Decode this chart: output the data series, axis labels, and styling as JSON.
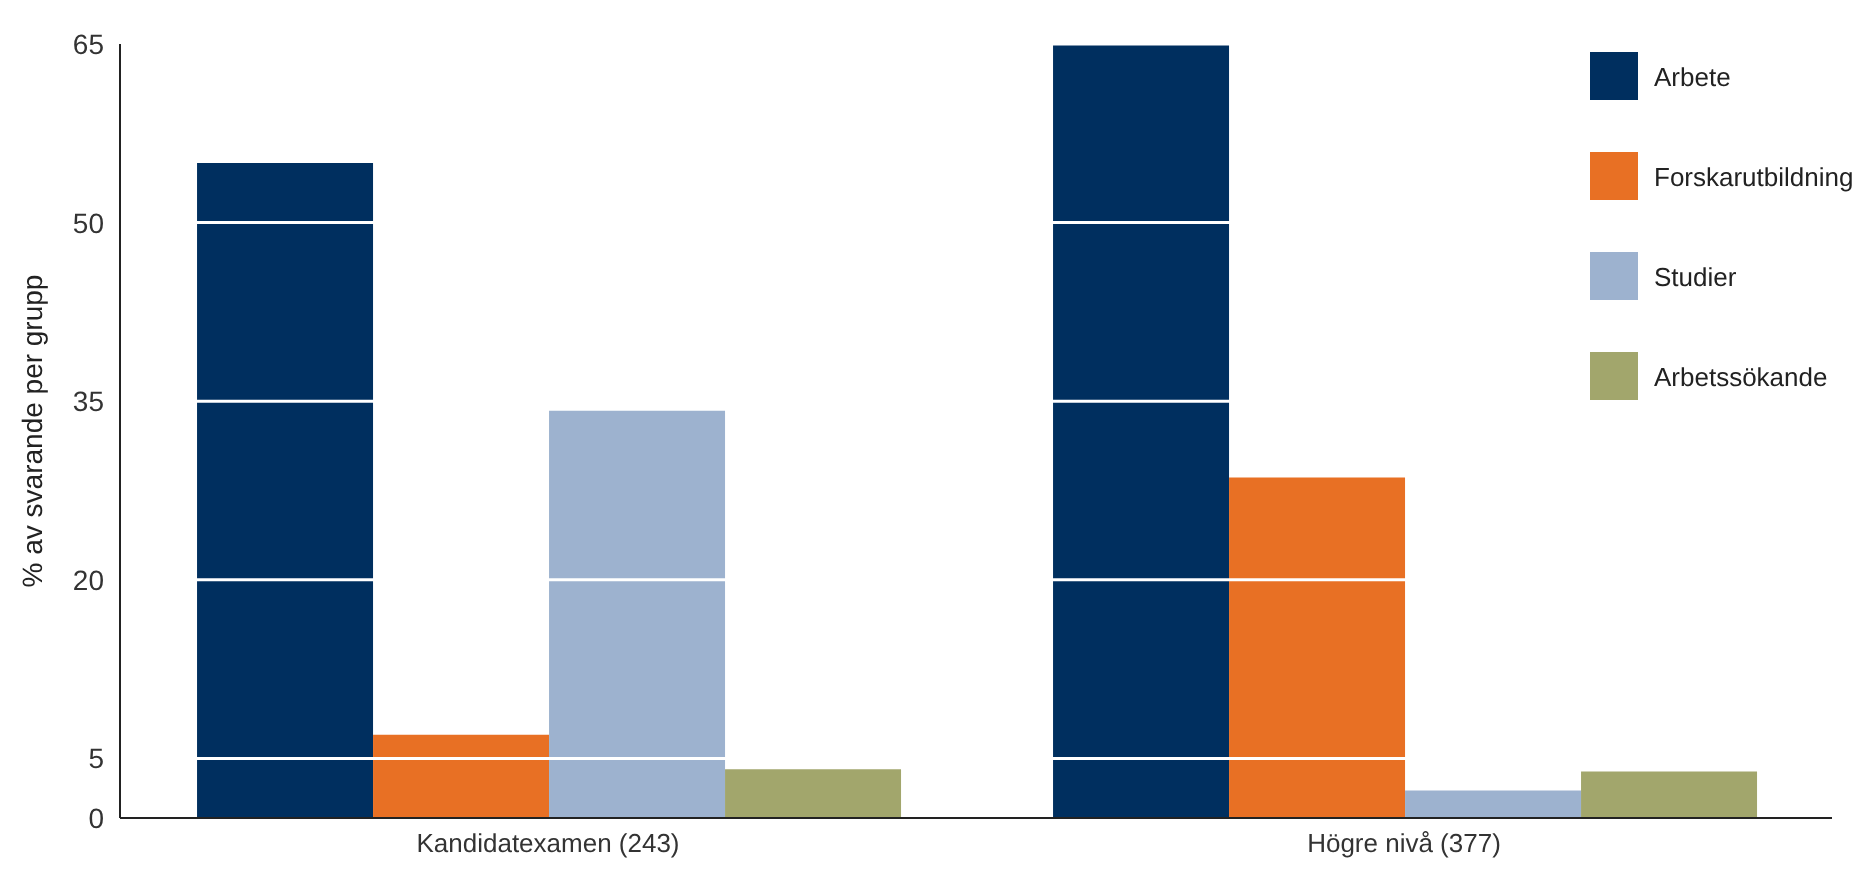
{
  "chart_data": {
    "type": "bar",
    "ylabel": "% av svarande per grupp",
    "categories": [
      "Kandidatexamen (243)",
      "Högre nivå (377)"
    ],
    "series": [
      {
        "name": "Arbete",
        "color": "#002f5f",
        "values": [
          55,
          65
        ]
      },
      {
        "name": "Forskarutbildning",
        "color": "#e87024",
        "values": [
          7,
          28.6
        ]
      },
      {
        "name": "Studier",
        "color": "#9db2cf",
        "values": [
          34.2,
          2.3
        ]
      },
      {
        "name": "Arbetssökande",
        "color": "#a2a66c",
        "values": [
          4.1,
          3.9
        ]
      }
    ],
    "ylim": [
      0,
      65
    ],
    "yticks": [
      0,
      5,
      20,
      35,
      50,
      65
    ],
    "grid": "y",
    "legend": "top right"
  }
}
